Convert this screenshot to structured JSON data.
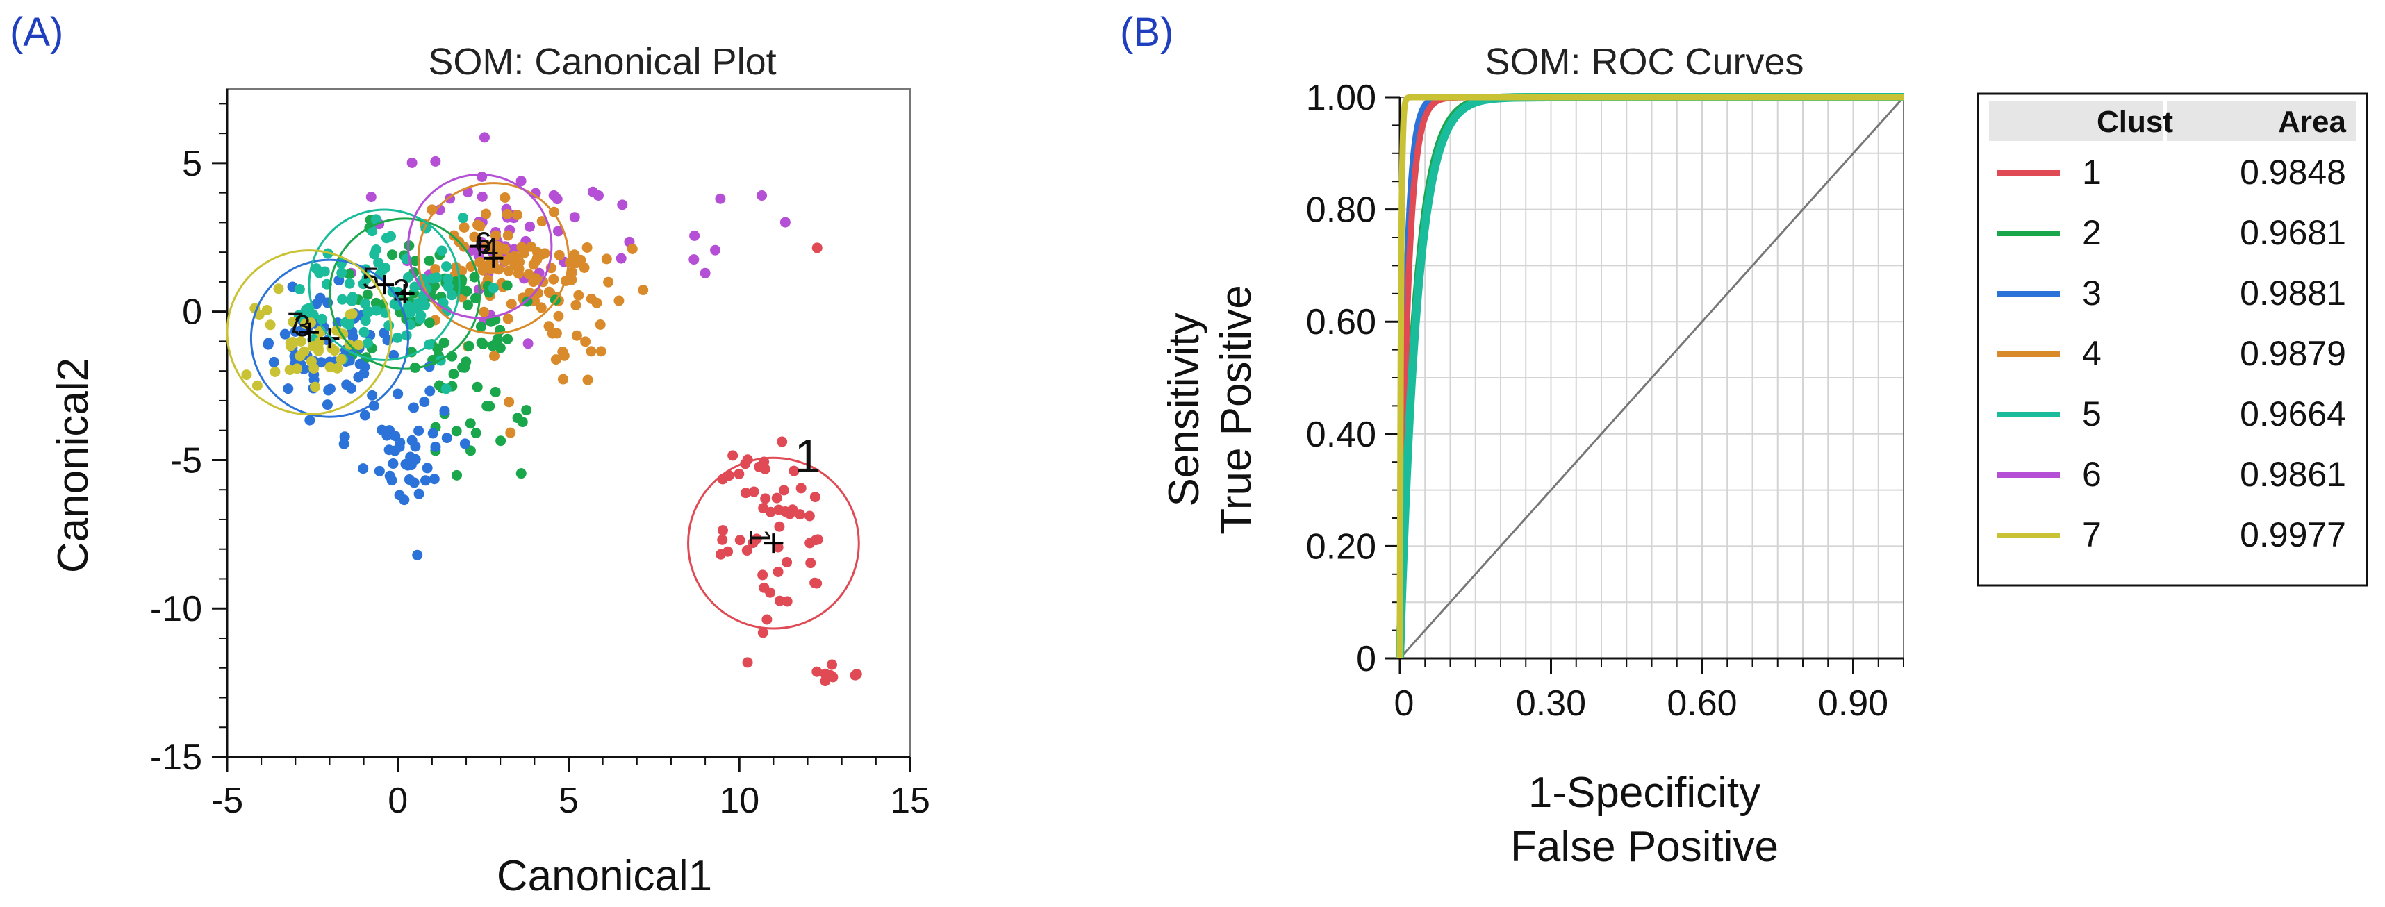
{
  "panels": {
    "a_label": "(A)",
    "b_label": "(B)"
  },
  "chart_data": [
    {
      "type": "scatter",
      "title": "SOM: Canonical Plot",
      "xlabel": "Canonical1",
      "ylabel": "Canonical2",
      "xlim": [
        -5,
        15
      ],
      "ylim": [
        -15,
        7.5
      ],
      "xticks": [
        -5,
        0,
        5,
        10,
        15
      ],
      "yticks": [
        -15,
        -10,
        -5,
        0,
        5
      ],
      "series": [
        {
          "name": "1",
          "color": "#e04a55",
          "center": [
            11.0,
            -7.8
          ],
          "circle_r": 2.5,
          "label_pos": [
            12.0,
            -4.9
          ],
          "label_size": "large"
        },
        {
          "name": "2",
          "color": "#1aa64b",
          "center": [
            0.2,
            0.6
          ],
          "circle_r": 2.2,
          "label_pos": [
            0.1,
            0.7
          ]
        },
        {
          "name": "3",
          "color": "#2b73d8",
          "center": [
            -2.0,
            -0.9
          ],
          "circle_r": 2.3,
          "label_pos": [
            -2.8,
            -0.5
          ]
        },
        {
          "name": "4",
          "color": "#d98a2b",
          "center": [
            2.8,
            1.8
          ],
          "circle_r": 2.2,
          "label_pos": [
            2.7,
            2.1
          ]
        },
        {
          "name": "5",
          "color": "#1abc9c",
          "center": [
            -0.4,
            0.9
          ],
          "circle_r": 2.2,
          "label_pos": [
            -0.8,
            1.1
          ]
        },
        {
          "name": "6",
          "color": "#b44fd6",
          "center": [
            2.4,
            2.2
          ],
          "circle_r": 2.1,
          "label_pos": [
            2.5,
            2.3
          ]
        },
        {
          "name": "7",
          "color": "#c9c235",
          "center": [
            -2.6,
            -0.7
          ],
          "circle_r": 2.4,
          "label_pos": [
            -3.0,
            -0.4
          ]
        }
      ]
    },
    {
      "type": "line",
      "title": "SOM: ROC Curves",
      "xlabel_line1": "1-Specificity",
      "xlabel_line2": "False Positive",
      "ylabel_line1": "Sensitivity",
      "ylabel_line2": "True Positive",
      "xlim": [
        0,
        1
      ],
      "ylim": [
        0,
        1
      ],
      "xtick_labels": [
        "0",
        "0.30",
        "0.60",
        "0.90"
      ],
      "xtick_values": [
        0,
        0.3,
        0.6,
        0.9
      ],
      "ytick_labels": [
        "0",
        "0.20",
        "0.40",
        "0.60",
        "0.80",
        "1.00"
      ],
      "ytick_values": [
        0,
        0.2,
        0.4,
        0.6,
        0.8,
        1.0
      ],
      "legend_headers": [
        "Clust",
        "Area"
      ],
      "series": [
        {
          "name": "1",
          "area": "0.9848",
          "color": "#e04a55"
        },
        {
          "name": "2",
          "area": "0.9681",
          "color": "#1aa64b"
        },
        {
          "name": "3",
          "area": "0.9881",
          "color": "#2b73d8"
        },
        {
          "name": "4",
          "area": "0.9879",
          "color": "#d98a2b"
        },
        {
          "name": "5",
          "area": "0.9664",
          "color": "#1abc9c"
        },
        {
          "name": "6",
          "area": "0.9861",
          "color": "#b44fd6"
        },
        {
          "name": "7",
          "area": "0.9977",
          "color": "#c9c235"
        }
      ]
    }
  ]
}
